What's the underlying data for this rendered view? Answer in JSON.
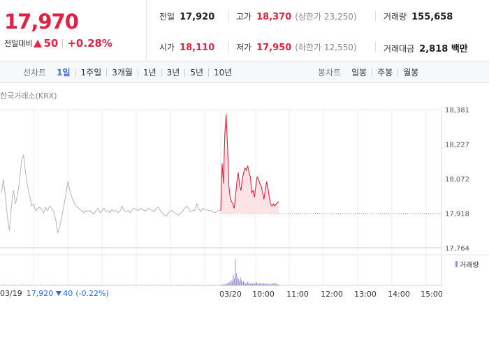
{
  "quote": {
    "price": "17,970",
    "change_label": "전일대비",
    "change_value": "50",
    "change_rate": "+0.28%",
    "direction": "up",
    "up_color": "#e12343"
  },
  "stats": {
    "prev_close": {
      "label": "전일",
      "value": "17,920"
    },
    "high": {
      "label": "고가",
      "value": "18,370",
      "sub": "(상한가 23,250)"
    },
    "volume": {
      "label": "거래량",
      "value": "155,658"
    },
    "open": {
      "label": "시가",
      "value": "18,110"
    },
    "low": {
      "label": "저가",
      "value": "17,950",
      "sub": "(하한가 12,550)"
    },
    "trade_value": {
      "label": "거래대금",
      "value": "2,818 백만"
    }
  },
  "line_chart_tabs": {
    "label": "선차트",
    "items": [
      "1일",
      "1주일",
      "3개월",
      "1년",
      "3년",
      "5년",
      "10년"
    ],
    "active": "1일"
  },
  "candle_chart_tabs": {
    "label": "봉차트",
    "items": [
      "일봉",
      "주봉",
      "월봉"
    ]
  },
  "exchange_label": "한국거래소(KRX)",
  "volume_legend": "거래량",
  "footer": {
    "prev_date": "03/19",
    "prev_price": "17,920",
    "prev_change": "40",
    "prev_rate": "(-0.22%)",
    "down_color": "#2a6ad1"
  },
  "chart_data": {
    "type": "line",
    "y_ticks": [
      "18,381",
      "18,227",
      "18,072",
      "17,918",
      "17,764"
    ],
    "ylim": [
      17764,
      18381
    ],
    "x_ticks": [
      "03/20",
      "10:00",
      "11:00",
      "12:00",
      "13:00",
      "14:00",
      "15:00"
    ],
    "reference_line": 17918,
    "series": [
      {
        "session": "03/19",
        "values": [
          18010,
          18070,
          17990,
          17900,
          17840,
          17950,
          18020,
          17960,
          18000,
          18060,
          18150,
          18180,
          18100,
          18040,
          18000,
          17950,
          17960,
          17930,
          17940,
          17945,
          17935,
          17920,
          17945,
          17930,
          17950,
          17940,
          17925,
          17890,
          17830,
          17860,
          17900,
          17950,
          18000,
          18060,
          18020,
          17990,
          17970,
          17950,
          17945,
          17935,
          17930,
          17920,
          17930,
          17925,
          17930,
          17920,
          17915,
          17930,
          17940,
          17920,
          17930,
          17940,
          17925,
          17930,
          17920,
          17935,
          17925,
          17930,
          17920,
          17930,
          17950,
          17930,
          17925,
          17930,
          17920,
          17935,
          17940,
          17935,
          17930,
          17940,
          17935,
          17930,
          17930,
          17940,
          17935,
          17930,
          17925,
          17940,
          17945,
          17930,
          17920,
          17910,
          17905,
          17920,
          17930,
          17930,
          17920,
          17915,
          17910,
          17920,
          17925,
          17940,
          17950,
          17940,
          17925,
          17930,
          17930,
          17960,
          17940,
          17925,
          17940,
          17935,
          17935,
          17930,
          17930,
          17925,
          17920,
          17925,
          17930,
          17930
        ],
        "color": "#b5b5b5"
      },
      {
        "session": "03/20",
        "values": [
          17930,
          18140,
          18050,
          18270,
          18360,
          18220,
          18040,
          17990,
          17970,
          17960,
          17940,
          18000,
          18060,
          18100,
          18040,
          18020,
          18070,
          18100,
          18120,
          18110,
          18130,
          18100,
          18080,
          18010,
          18020,
          17990,
          18040,
          18080,
          18070,
          18050,
          18040,
          18010,
          17980,
          18020,
          18060,
          18030,
          17990,
          17960,
          17950,
          17960,
          17950,
          17960,
          17965,
          17970
        ],
        "color": "#e12343"
      }
    ],
    "volume": [
      1,
      2,
      1,
      1,
      1,
      2,
      1,
      1,
      1,
      3,
      1,
      1,
      2,
      1,
      1,
      1,
      1,
      2,
      1,
      1,
      1,
      1,
      1,
      2,
      1,
      1,
      1,
      1,
      1,
      1,
      2,
      1,
      1,
      1,
      1,
      1,
      1,
      1,
      1,
      1,
      1,
      1,
      1,
      1,
      1,
      1,
      1,
      1,
      1,
      1,
      1,
      1,
      1,
      1,
      1,
      1,
      1,
      1,
      1,
      1,
      1,
      1,
      1,
      1,
      1,
      1,
      1,
      1,
      1,
      1,
      1,
      1,
      1,
      1,
      1,
      1,
      1,
      1,
      1,
      1,
      1,
      1,
      1,
      1,
      1,
      1,
      1,
      1,
      1,
      1,
      1,
      1,
      1,
      1,
      1,
      1,
      1,
      1,
      1,
      1,
      2,
      1,
      2,
      2,
      3,
      4,
      3,
      6,
      5,
      12,
      8,
      30,
      14,
      10,
      7,
      5,
      9,
      6,
      4,
      5,
      3,
      2,
      3,
      4,
      3,
      2,
      2,
      3,
      2,
      2,
      2,
      3,
      4,
      2,
      2,
      3,
      2,
      2,
      3,
      2,
      2,
      2,
      2,
      2,
      2,
      1,
      2,
      2,
      2,
      3,
      2,
      2,
      2,
      1,
      1
    ]
  }
}
